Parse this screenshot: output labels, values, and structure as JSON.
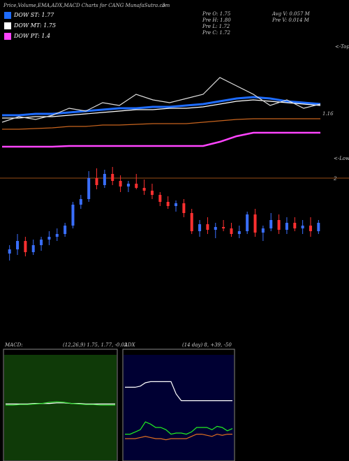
{
  "header": {
    "title": "Price,Volume,EMA,ADX,MACD Charts for CANG MunafaSutra.com",
    "top_mark": "3",
    "legend": [
      "DOW ST: 1.77",
      "DOW MT: 1.75",
      "DOW PT: 1.4"
    ],
    "info": [
      "Pre  O: 1.75",
      "Pre  H: 1.80",
      "Pre  L: 1.72",
      "Pre  C: 1.72",
      "Avg V: 0.057 M",
      "Pre  V: 0.014 M"
    ],
    "tops": "<-Tops",
    "lows": "<-Lows"
  },
  "chart_data": [
    {
      "type": "line",
      "ylim": [
        0.9,
        1.6
      ],
      "level": 1.16,
      "level_label": "1.16",
      "series": [
        {
          "name": "DOW ST: 1.77",
          "color": "#1e6cff",
          "values": [
            1.15,
            1.15,
            1.16,
            1.16,
            1.17,
            1.18,
            1.19,
            1.2,
            1.2,
            1.21,
            1.21,
            1.22,
            1.23,
            1.25,
            1.27,
            1.28,
            1.27,
            1.25,
            1.24,
            1.23
          ]
        },
        {
          "name": "DOW MT: 1.75",
          "color": "#ffffff",
          "values": [
            1.13,
            1.13,
            1.14,
            1.14,
            1.15,
            1.16,
            1.17,
            1.18,
            1.19,
            1.19,
            1.2,
            1.2,
            1.21,
            1.23,
            1.25,
            1.26,
            1.25,
            1.24,
            1.23,
            1.22
          ]
        },
        {
          "name": "DOW PT: 1.4",
          "color": "#ff44ff",
          "values": [
            0.925,
            0.925,
            0.925,
            0.925,
            0.93,
            0.93,
            0.93,
            0.93,
            0.93,
            0.93,
            0.93,
            0.93,
            0.93,
            0.96,
            1.0,
            1.025,
            1.025,
            1.025,
            1.025,
            1.025
          ]
        },
        {
          "color": "#c8641e",
          "values": [
            1.05,
            1.05,
            1.055,
            1.06,
            1.07,
            1.07,
            1.08,
            1.08,
            1.085,
            1.09,
            1.09,
            1.09,
            1.1,
            1.11,
            1.12,
            1.125,
            1.125,
            1.125,
            1.125,
            1.125
          ]
        },
        {
          "color": "#dddddd",
          "values": [
            1.1,
            1.14,
            1.12,
            1.15,
            1.2,
            1.18,
            1.24,
            1.22,
            1.3,
            1.26,
            1.24,
            1.27,
            1.3,
            1.42,
            1.36,
            1.3,
            1.22,
            1.26,
            1.2,
            1.23
          ]
        }
      ]
    },
    {
      "type": "candlestick",
      "ylim": [
        1.2,
        2.2
      ],
      "level": 2,
      "level_label": "2",
      "up_color": "#3a6fff",
      "down_color": "#ff3030",
      "open": [
        1.46,
        1.49,
        1.55,
        1.47,
        1.52,
        1.56,
        1.58,
        1.6,
        1.66,
        1.81,
        1.85,
        2.0,
        1.95,
        2.03,
        1.98,
        1.94,
        1.96,
        1.93,
        1.91,
        1.88,
        1.83,
        1.8,
        1.82,
        1.75,
        1.62,
        1.67,
        1.63,
        1.65,
        1.64,
        1.6,
        1.62,
        1.74,
        1.61,
        1.64,
        1.7,
        1.63,
        1.68,
        1.64,
        1.66,
        1.62
      ],
      "high": [
        1.52,
        1.6,
        1.58,
        1.56,
        1.58,
        1.62,
        1.64,
        1.68,
        1.83,
        1.88,
        2.05,
        2.07,
        2.06,
        2.08,
        2.02,
        1.98,
        2.03,
        1.99,
        1.96,
        1.9,
        1.87,
        1.84,
        1.85,
        1.78,
        1.7,
        1.72,
        1.68,
        1.7,
        1.68,
        1.66,
        1.76,
        1.78,
        1.66,
        1.75,
        1.74,
        1.72,
        1.72,
        1.7,
        1.72,
        1.7
      ],
      "low": [
        1.41,
        1.45,
        1.44,
        1.45,
        1.48,
        1.52,
        1.55,
        1.58,
        1.64,
        1.78,
        1.83,
        1.92,
        1.93,
        1.95,
        1.9,
        1.9,
        1.92,
        1.88,
        1.85,
        1.8,
        1.78,
        1.76,
        1.72,
        1.6,
        1.58,
        1.6,
        1.57,
        1.62,
        1.58,
        1.57,
        1.6,
        1.58,
        1.55,
        1.62,
        1.6,
        1.6,
        1.62,
        1.6,
        1.58,
        1.6
      ],
      "close": [
        1.49,
        1.55,
        1.47,
        1.52,
        1.56,
        1.58,
        1.6,
        1.66,
        1.81,
        1.85,
        2.0,
        1.95,
        2.03,
        1.98,
        1.94,
        1.96,
        1.93,
        1.91,
        1.88,
        1.83,
        1.8,
        1.82,
        1.75,
        1.62,
        1.67,
        1.63,
        1.65,
        1.64,
        1.6,
        1.62,
        1.74,
        1.61,
        1.64,
        1.7,
        1.63,
        1.68,
        1.64,
        1.66,
        1.62,
        1.68
      ]
    },
    {
      "type": "line",
      "title": "MACD:",
      "subtitle": "(12,26,9) 1.75, 1.77, -0.02",
      "background": "#0f3a08",
      "ylim": [
        -1,
        1
      ],
      "series": [
        {
          "color": "#ffffff",
          "values": [
            0.02,
            0.02,
            0.02,
            0.02,
            0.03,
            0.03,
            0.03,
            0.04,
            0.04,
            0.03,
            0.03,
            0.02,
            0.02,
            0.02,
            0.02,
            0.02
          ]
        },
        {
          "color": "#33dd33",
          "values": [
            0.0,
            0.0,
            0.01,
            0.01,
            0.02,
            0.03,
            0.05,
            0.06,
            0.05,
            0.03,
            0.02,
            0.01,
            0.01,
            0.0,
            0.0,
            0.0
          ]
        }
      ]
    },
    {
      "type": "line",
      "title": "ADX",
      "subtitle": "(14  day) 8, +39, -50",
      "background": "#000033",
      "ylim": [
        0,
        100
      ],
      "series": [
        {
          "color": "#ffffff",
          "values": [
            66,
            66,
            66,
            67,
            70,
            71,
            71,
            71,
            71,
            71,
            60,
            54,
            54,
            54,
            54,
            54,
            54,
            54,
            54,
            54,
            54,
            54
          ]
        },
        {
          "color": "#22ee22",
          "values": [
            24,
            24,
            26,
            28,
            35,
            33,
            30,
            30,
            28,
            24,
            25,
            25,
            24,
            26,
            30,
            30,
            30,
            28,
            31,
            30,
            27,
            29
          ]
        },
        {
          "color": "#e07020",
          "values": [
            20,
            20,
            20,
            21,
            22,
            21,
            20,
            20,
            19,
            20,
            20,
            20,
            20,
            22,
            24,
            24,
            23,
            22,
            24,
            23,
            24,
            24
          ]
        }
      ]
    }
  ]
}
